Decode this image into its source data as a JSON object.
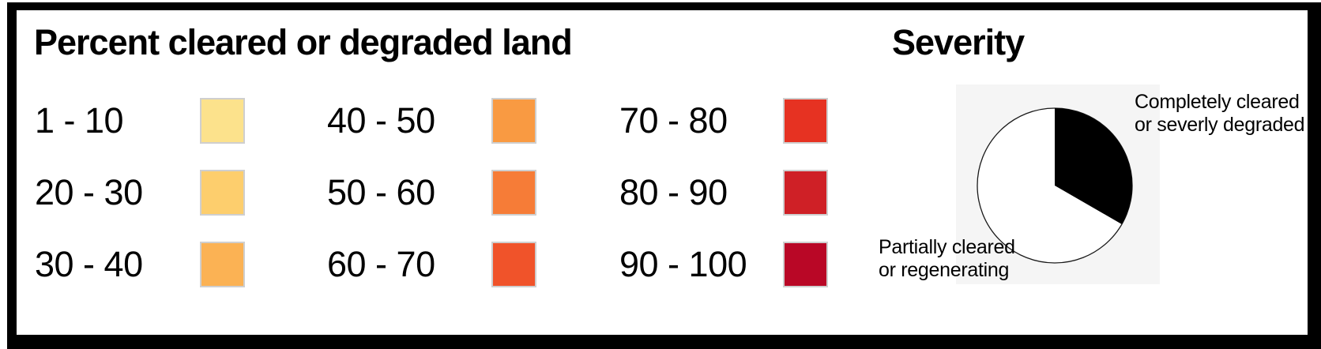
{
  "legend": {
    "title": "Percent cleared or degraded land",
    "items": [
      {
        "range": "1 - 10",
        "color": "#FCE28C"
      },
      {
        "range": "20 - 30",
        "color": "#FDCE6D"
      },
      {
        "range": "30 - 40",
        "color": "#FBB254"
      },
      {
        "range": "40 - 50",
        "color": "#F99A42"
      },
      {
        "range": "50 - 60",
        "color": "#F67C37"
      },
      {
        "range": "60 - 70",
        "color": "#F0532A"
      },
      {
        "range": "70 - 80",
        "color": "#E63222"
      },
      {
        "range": "80 - 90",
        "color": "#CF2026"
      },
      {
        "range": "90 - 100",
        "color": "#B90726"
      }
    ]
  },
  "severity": {
    "title": "Severity",
    "labels": {
      "completely": "Completely cleared\nor severly degraded",
      "partially": "Partially cleared\nor regenerating"
    }
  },
  "colors": {
    "frame": "#000000",
    "pie_panel_bg": "#F5F5F5",
    "pie_outline": "#1A1A1A",
    "text": "#000000"
  },
  "chart_data": {
    "type": "pie",
    "title": "Severity",
    "start_angle_deg": 0,
    "direction": "clockwise",
    "legend_position": "around",
    "slices": [
      {
        "label": "Completely cleared or severly degraded",
        "color": "#000000",
        "degrees": 120,
        "fraction": 0.333
      },
      {
        "label": "Partially cleared or regenerating",
        "color": "#FFFFFF",
        "degrees": 240,
        "fraction": 0.667
      }
    ]
  }
}
